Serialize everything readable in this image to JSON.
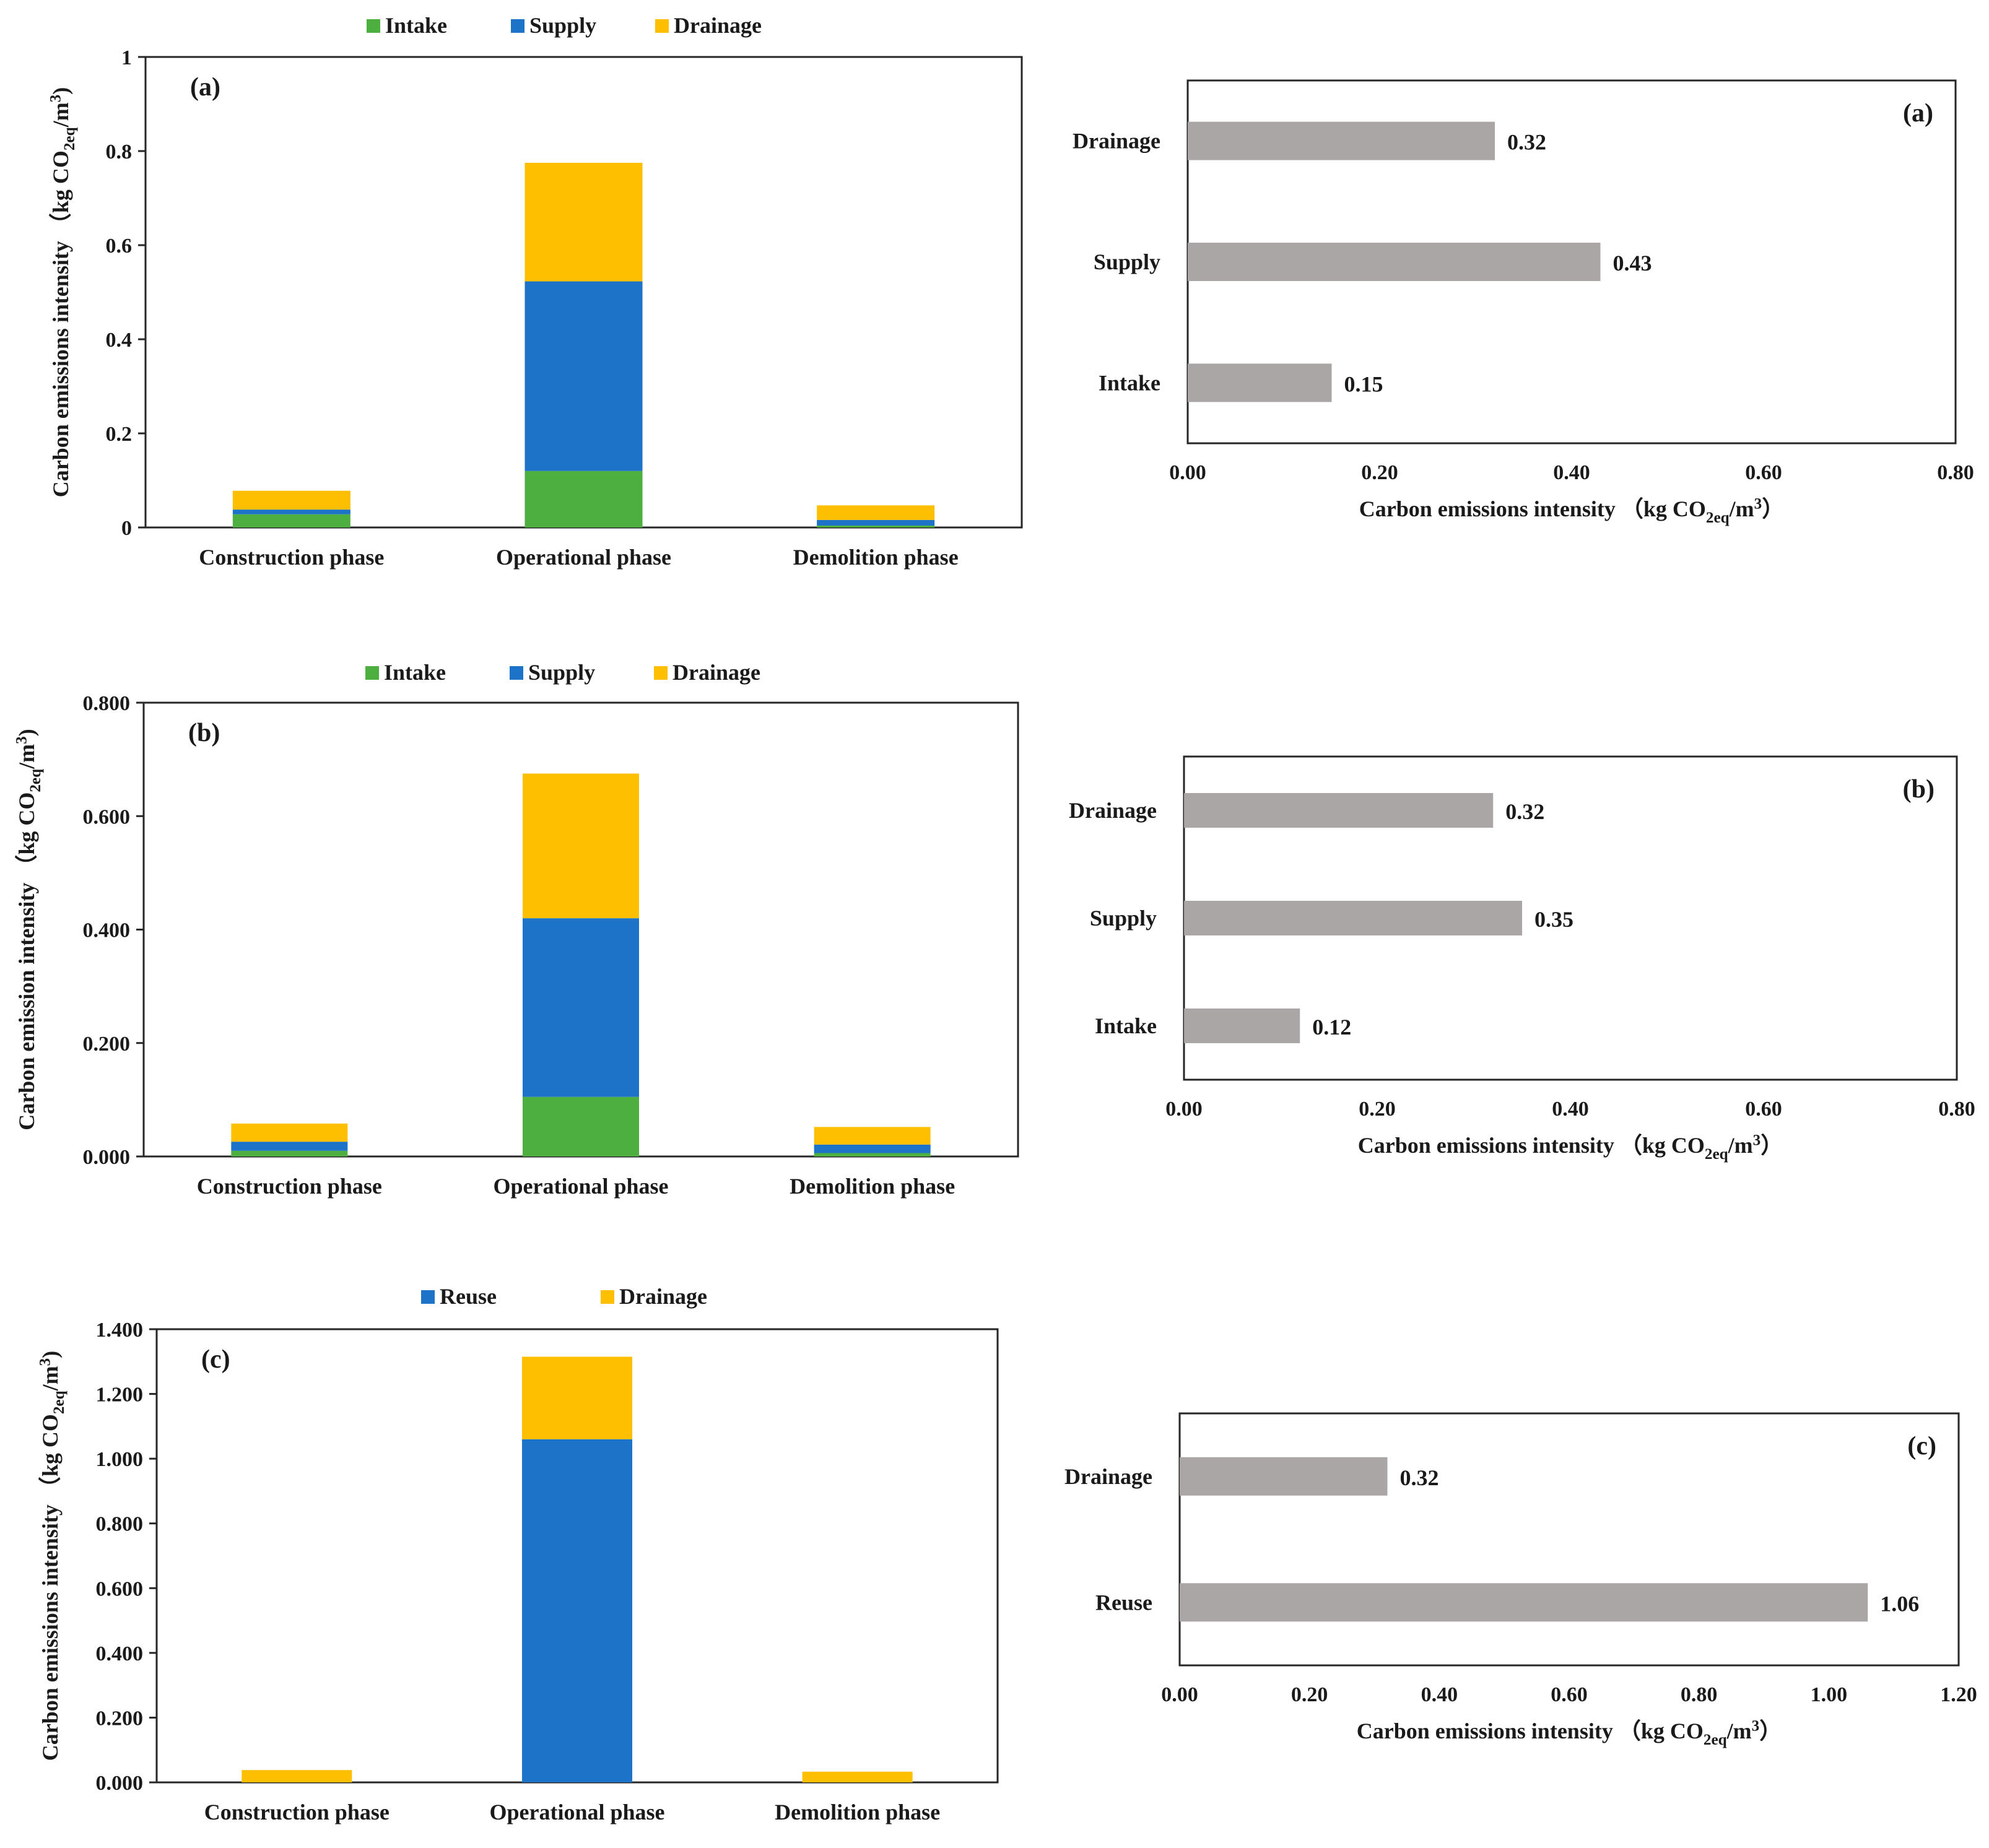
{
  "colors": {
    "intake": "#4CAF3F",
    "supply": "#1C73C8",
    "reuse": "#1C73C8",
    "drainage": "#FDBF00",
    "hbar": "#A9A6A5",
    "axis": "#262626"
  },
  "chart_data": [
    {
      "type": "bar",
      "stacked": true,
      "panel_label": "(a)",
      "categories": [
        "Construction phase",
        "Operational phase",
        "Demolition phase"
      ],
      "series": [
        {
          "name": "Intake",
          "color_key": "intake",
          "values": [
            0.028,
            0.12,
            0.004
          ]
        },
        {
          "name": "Supply",
          "color_key": "supply",
          "values": [
            0.01,
            0.403,
            0.012
          ]
        },
        {
          "name": "Drainage",
          "color_key": "drainage",
          "values": [
            0.04,
            0.252,
            0.031
          ]
        }
      ],
      "ylim": [
        0,
        1
      ],
      "yticks": [
        0,
        0.2,
        0.4,
        0.6,
        0.8,
        1
      ],
      "ytick_labels": [
        "0",
        "0.2",
        "0.4",
        "0.6",
        "0.8",
        "1"
      ],
      "ylabel_main": "Carbon emissions intensity （kg CO",
      "ylabel_sub": "2eq",
      "ylabel_tail": "/m",
      "ylabel_sup": "3",
      "ylabel_close": ")",
      "legend": [
        "Intake",
        "Supply",
        "Drainage"
      ]
    },
    {
      "type": "bar",
      "horizontal": true,
      "panel_label": "(a)",
      "categories": [
        "Intake",
        "Supply",
        "Drainage"
      ],
      "values": [
        0.15,
        0.43,
        0.32
      ],
      "value_labels": [
        "0.15",
        "0.43",
        "0.32"
      ],
      "xlim": [
        0,
        0.8
      ],
      "xticks": [
        0,
        0.2,
        0.4,
        0.6,
        0.8
      ],
      "xtick_labels": [
        "0.00",
        "0.20",
        "0.40",
        "0.60",
        "0.80"
      ],
      "xlabel_main": "Carbon emissions intensity （kg CO",
      "xlabel_sub": "2eq",
      "xlabel_tail": "/m",
      "xlabel_sup": "3",
      "xlabel_close": "）"
    },
    {
      "type": "bar",
      "stacked": true,
      "panel_label": "(b)",
      "categories": [
        "Construction phase",
        "Operational phase",
        "Demolition phase"
      ],
      "series": [
        {
          "name": "Intake",
          "color_key": "intake",
          "values": [
            0.01,
            0.105,
            0.006
          ]
        },
        {
          "name": "Supply",
          "color_key": "supply",
          "values": [
            0.016,
            0.315,
            0.015
          ]
        },
        {
          "name": "Drainage",
          "color_key": "drainage",
          "values": [
            0.032,
            0.255,
            0.031
          ]
        }
      ],
      "ylim": [
        0,
        0.8
      ],
      "yticks": [
        0,
        0.2,
        0.4,
        0.6,
        0.8
      ],
      "ytick_labels": [
        "0.000",
        "0.200",
        "0.400",
        "0.600",
        "0.800"
      ],
      "ylabel_main": "Carbon emission intensity （kg CO",
      "ylabel_sub": "2eq",
      "ylabel_tail": "/m",
      "ylabel_sup": "3",
      "ylabel_close": ")",
      "legend": [
        "Intake",
        "Supply",
        "Drainage"
      ]
    },
    {
      "type": "bar",
      "horizontal": true,
      "panel_label": "(b)",
      "categories": [
        "Intake",
        "Supply",
        "Drainage"
      ],
      "values": [
        0.12,
        0.35,
        0.32
      ],
      "value_labels": [
        "0.12",
        "0.35",
        "0.32"
      ],
      "xlim": [
        0,
        0.8
      ],
      "xticks": [
        0,
        0.2,
        0.4,
        0.6,
        0.8
      ],
      "xtick_labels": [
        "0.00",
        "0.20",
        "0.40",
        "0.60",
        "0.80"
      ],
      "xlabel_main": "Carbon emissions intensity （kg CO",
      "xlabel_sub": "2eq",
      "xlabel_tail": "/m",
      "xlabel_sup": "3",
      "xlabel_close": "）"
    },
    {
      "type": "bar",
      "stacked": true,
      "panel_label": "(c)",
      "categories": [
        "Construction phase",
        "Operational phase",
        "Demolition phase"
      ],
      "series": [
        {
          "name": "Reuse",
          "color_key": "reuse",
          "values": [
            0,
            1.06,
            0
          ]
        },
        {
          "name": "Drainage",
          "color_key": "drainage",
          "values": [
            0.038,
            0.255,
            0.033
          ]
        }
      ],
      "ylim": [
        0,
        1.4
      ],
      "yticks": [
        0,
        0.2,
        0.4,
        0.6,
        0.8,
        1.0,
        1.2,
        1.4
      ],
      "ytick_labels": [
        "0.000",
        "0.200",
        "0.400",
        "0.600",
        "0.800",
        "1.000",
        "1.200",
        "1.400"
      ],
      "ylabel_main": "Carbon emissions intensity （kg CO",
      "ylabel_sub": "2eq",
      "ylabel_tail": "/m",
      "ylabel_sup": "3",
      "ylabel_close": ")",
      "legend": [
        "Reuse",
        "Drainage"
      ]
    },
    {
      "type": "bar",
      "horizontal": true,
      "panel_label": "(c)",
      "categories": [
        "Reuse",
        "Drainage"
      ],
      "values": [
        1.06,
        0.32
      ],
      "value_labels": [
        "1.06",
        "0.32"
      ],
      "xlim": [
        0,
        1.2
      ],
      "xticks": [
        0,
        0.2,
        0.4,
        0.6,
        0.8,
        1.0,
        1.2
      ],
      "xtick_labels": [
        "0.00",
        "0.20",
        "0.40",
        "0.60",
        "0.80",
        "1.00",
        "1.20"
      ],
      "xlabel_main": "Carbon emissions intensity （kg CO",
      "xlabel_sub": "2eq",
      "xlabel_tail": "/m",
      "xlabel_sup": "3",
      "xlabel_close": "）"
    }
  ]
}
